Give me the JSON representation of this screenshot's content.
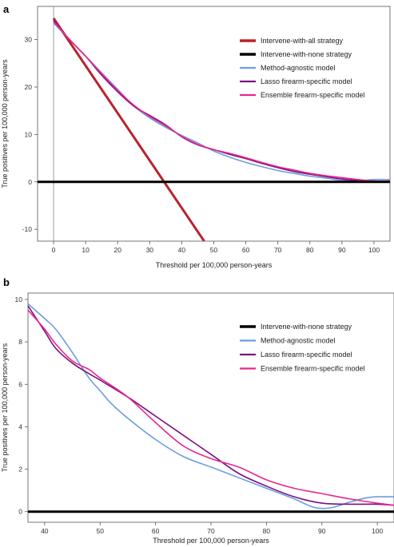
{
  "chart_data": [
    {
      "panel": "a",
      "type": "line",
      "xlabel": "Threshold per 100,000 person-years",
      "ylabel": "True positives per 100,000 person-years",
      "xlim": [
        -5,
        105
      ],
      "ylim": [
        -12.5,
        37
      ],
      "xticks": [
        0,
        10,
        20,
        30,
        40,
        50,
        60,
        70,
        80,
        90,
        100
      ],
      "yticks": [
        -10,
        0,
        10,
        20,
        30
      ],
      "vline_x": 0,
      "grid": false,
      "legend_position": "top-right",
      "series": [
        {
          "name": "Intervene-with-all strategy",
          "color": "#b8242c",
          "width": 3,
          "x": [
            0,
            47
          ],
          "y": [
            34.5,
            -12.5
          ]
        },
        {
          "name": "Intervene-with-none strategy",
          "color": "#000000",
          "width": 3,
          "x": [
            -5,
            105
          ],
          "y": [
            0,
            0
          ]
        },
        {
          "name": "Method-agnostic model",
          "color": "#6b9de0",
          "width": 1.6,
          "x": [
            0,
            5,
            10,
            15,
            20,
            25,
            30,
            35,
            40,
            45,
            50,
            55,
            60,
            65,
            70,
            75,
            80,
            85,
            90,
            95,
            100,
            105
          ],
          "y": [
            33.5,
            30,
            26.5,
            23,
            19.5,
            16,
            13.5,
            11.5,
            9.8,
            8.2,
            6.5,
            5.2,
            4.1,
            3.2,
            2.4,
            1.8,
            1.2,
            0.8,
            0.3,
            0.2,
            0.5,
            0.5
          ]
        },
        {
          "name": "Lasso firearm-specific model",
          "color": "#7a1083",
          "width": 1.6,
          "x": [
            0,
            5,
            10,
            15,
            20,
            25,
            30,
            35,
            40,
            45,
            50,
            55,
            60,
            65,
            70,
            75,
            80,
            85,
            90,
            95,
            100,
            105
          ],
          "y": [
            34,
            30,
            26.5,
            22.5,
            19,
            16,
            14,
            12,
            9.5,
            7.8,
            6.8,
            5.8,
            4.9,
            3.9,
            3.0,
            2.2,
            1.6,
            1.1,
            0.6,
            0.3,
            0.1,
            0.1
          ]
        },
        {
          "name": "Ensemble firearm-specific model",
          "color": "#e8288c",
          "width": 1.6,
          "x": [
            0,
            5,
            10,
            15,
            20,
            25,
            30,
            35,
            40,
            45,
            50,
            55,
            60,
            65,
            70,
            75,
            80,
            85,
            90,
            95,
            100,
            105
          ],
          "y": [
            33.8,
            30,
            26.5,
            22.8,
            19.3,
            16.2,
            13.8,
            11.8,
            9.6,
            7.9,
            6.8,
            6.0,
            5.1,
            4.1,
            3.2,
            2.5,
            1.8,
            1.3,
            0.9,
            0.5,
            0.2,
            0.2
          ]
        }
      ]
    },
    {
      "panel": "b",
      "type": "line",
      "xlabel": "Threshold per 100,000 person-years",
      "ylabel": "True positives per 100,000 person-years",
      "xlim": [
        37,
        103
      ],
      "ylim": [
        -0.5,
        10.3
      ],
      "xticks": [
        40,
        50,
        60,
        70,
        80,
        90,
        100
      ],
      "yticks": [
        0,
        2,
        4,
        6,
        8,
        10
      ],
      "grid": false,
      "legend_position": "top-right",
      "series": [
        {
          "name": "Intervene-with-none strategy",
          "color": "#000000",
          "width": 3,
          "x": [
            37,
            103
          ],
          "y": [
            0,
            0
          ]
        },
        {
          "name": "Method-agnostic model",
          "color": "#6b9de0",
          "width": 1.6,
          "x": [
            37,
            40,
            42,
            45,
            48,
            50,
            52,
            55,
            60,
            65,
            70,
            75,
            80,
            85,
            88,
            90,
            92,
            95,
            98,
            100,
            103
          ],
          "y": [
            9.8,
            9.1,
            8.6,
            7.5,
            6.3,
            5.7,
            5.1,
            4.4,
            3.4,
            2.6,
            2.1,
            1.6,
            1.1,
            0.6,
            0.25,
            0.15,
            0.2,
            0.45,
            0.65,
            0.7,
            0.7
          ]
        },
        {
          "name": "Lasso firearm-specific model",
          "color": "#7a1083",
          "width": 1.6,
          "x": [
            37,
            40,
            42,
            45,
            48,
            50,
            55,
            60,
            65,
            70,
            75,
            80,
            85,
            90,
            95,
            100,
            103
          ],
          "y": [
            9.7,
            8.5,
            7.7,
            7.0,
            6.5,
            6.2,
            5.4,
            4.5,
            3.6,
            2.7,
            1.8,
            1.2,
            0.7,
            0.4,
            0.35,
            0.35,
            0.3
          ]
        },
        {
          "name": "Ensemble firearm-specific model",
          "color": "#e8288c",
          "width": 1.6,
          "x": [
            37,
            40,
            42,
            45,
            48,
            50,
            55,
            60,
            65,
            70,
            75,
            80,
            85,
            90,
            95,
            100,
            103
          ],
          "y": [
            9.5,
            8.6,
            7.9,
            7.1,
            6.7,
            6.3,
            5.4,
            4.2,
            3.1,
            2.5,
            2.1,
            1.5,
            1.1,
            0.85,
            0.6,
            0.4,
            0.3
          ]
        }
      ]
    }
  ]
}
